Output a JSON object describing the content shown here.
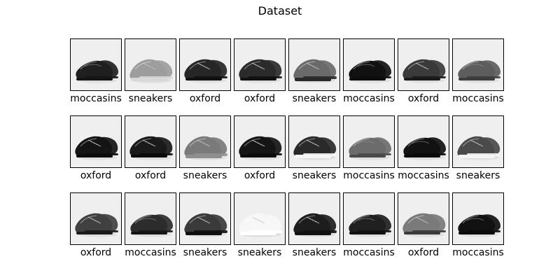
{
  "title": "Dataset",
  "items": [
    {
      "label": "moccasins",
      "shade": "#1f1f1f",
      "sole": "#151515"
    },
    {
      "label": "sneakers",
      "shade": "#9d9d9d",
      "sole": "#d8d8d8"
    },
    {
      "label": "oxford",
      "shade": "#262626",
      "sole": "#111111"
    },
    {
      "label": "oxford",
      "shade": "#2b2b2b",
      "sole": "#111111"
    },
    {
      "label": "sneakers",
      "shade": "#6a6a6a",
      "sole": "#2a2a2a"
    },
    {
      "label": "moccasins",
      "shade": "#111111",
      "sole": "#0d0d0d"
    },
    {
      "label": "oxford",
      "shade": "#3a3a3a",
      "sole": "#1a1a1a"
    },
    {
      "label": "moccasins",
      "shade": "#5d5d5d",
      "sole": "#3d3d3d"
    },
    {
      "label": "oxford",
      "shade": "#141414",
      "sole": "#0a0a0a"
    },
    {
      "label": "oxford",
      "shade": "#1a1a1a",
      "sole": "#0a0a0a"
    },
    {
      "label": "sneakers",
      "shade": "#7a7a7a",
      "sole": "#8f8f8f"
    },
    {
      "label": "oxford",
      "shade": "#151515",
      "sole": "#0a0a0a"
    },
    {
      "label": "sneakers",
      "shade": "#2a2a2a",
      "sole": "#f6f6f6"
    },
    {
      "label": "moccasins",
      "shade": "#6c6c6c",
      "sole": "#4a4a4a"
    },
    {
      "label": "moccasins",
      "shade": "#121212",
      "sole": "#0a0a0a"
    },
    {
      "label": "sneakers",
      "shade": "#4a4a4a",
      "sole": "#f4f4f4"
    },
    {
      "label": "oxford",
      "shade": "#404040",
      "sole": "#1a1a1a"
    },
    {
      "label": "moccasins",
      "shade": "#2c2c2c",
      "sole": "#161616"
    },
    {
      "label": "sneakers",
      "shade": "#3a3a3a",
      "sole": "#101010"
    },
    {
      "label": "sneakers",
      "shade": "#f7f7f7",
      "sole": "#ffffff"
    },
    {
      "label": "sneakers",
      "shade": "#1d1d1d",
      "sole": "#121212"
    },
    {
      "label": "moccasins",
      "shade": "#202020",
      "sole": "#121212"
    },
    {
      "label": "oxford",
      "shade": "#7a7a7a",
      "sole": "#3b3b3b"
    },
    {
      "label": "moccasins",
      "shade": "#111111",
      "sole": "#0a0a0a"
    }
  ]
}
